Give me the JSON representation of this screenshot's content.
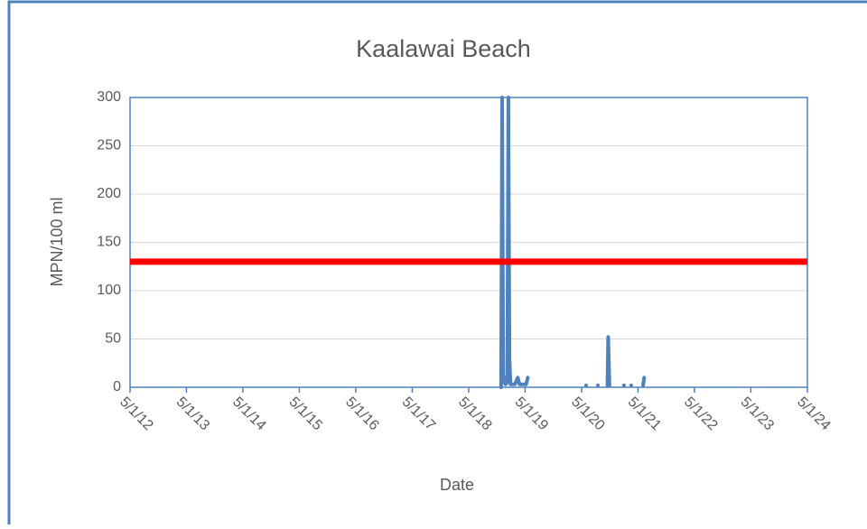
{
  "chart_data": {
    "type": "line",
    "title": "Kaalawai Beach",
    "x_label": "Date",
    "y_label": "MPN/100 ml",
    "x": [
      "2018-11-27",
      "2018-12-04",
      "2018-12-11",
      "2018-12-19",
      "2018-12-26",
      "2019-01-06",
      "2019-01-13",
      "2019-01-20",
      "2019-01-27",
      "2019-02-24",
      "2019-03-15",
      "2019-03-26",
      "2019-05-08",
      "2019-05-19",
      null,
      "2020-05-30",
      null,
      "2020-08-14",
      null,
      "2020-10-15",
      "2020-10-20",
      "2020-10-28",
      null,
      "2021-01-30",
      null,
      "2021-03-18",
      null,
      "2021-06-03",
      "2021-06-10"
    ],
    "series": [
      {
        "color": "#4f81bd",
        "values": [
          0,
          300,
          5,
          10,
          3,
          5,
          300,
          30,
          3,
          3,
          10,
          3,
          3,
          10,
          null,
          2,
          null,
          2,
          null,
          2,
          52,
          2,
          null,
          2,
          null,
          2,
          null,
          2,
          10
        ]
      }
    ],
    "threshold": {
      "value": 130,
      "color": "#ff0000"
    },
    "xlim": [
      "2012-05-01",
      "2024-05-01"
    ],
    "xticks": [
      {
        "value": "2012-05-01",
        "label": "5/1/12"
      },
      {
        "value": "2013-05-01",
        "label": "5/1/13"
      },
      {
        "value": "2014-05-01",
        "label": "5/1/14"
      },
      {
        "value": "2015-05-01",
        "label": "5/1/15"
      },
      {
        "value": "2016-05-01",
        "label": "5/1/16"
      },
      {
        "value": "2017-05-01",
        "label": "5/1/17"
      },
      {
        "value": "2018-05-01",
        "label": "5/1/18"
      },
      {
        "value": "2019-05-01",
        "label": "5/1/19"
      },
      {
        "value": "2020-05-01",
        "label": "5/1/20"
      },
      {
        "value": "2021-05-01",
        "label": "5/1/21"
      },
      {
        "value": "2022-05-01",
        "label": "5/1/22"
      },
      {
        "value": "2023-05-01",
        "label": "5/1/23"
      },
      {
        "value": "2024-05-01",
        "label": "5/1/24"
      }
    ],
    "ylim": [
      0,
      300
    ],
    "yticks": [
      0,
      50,
      100,
      150,
      200,
      250,
      300
    ],
    "grid": true
  }
}
